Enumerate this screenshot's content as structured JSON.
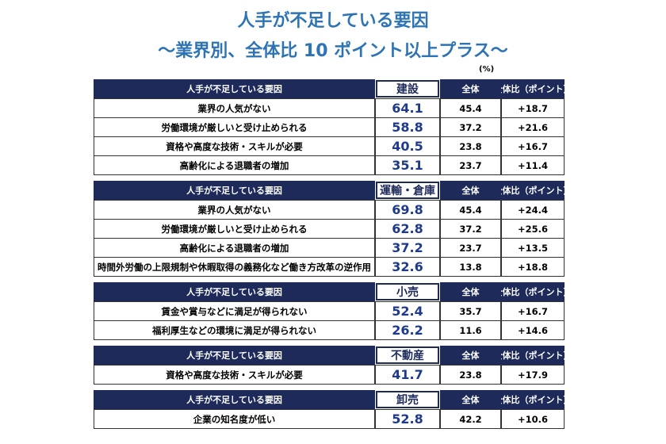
{
  "title": [
    "人手が不足している要因",
    "～業界別、全体比 10 ポイント以上プラス～"
  ],
  "unit": "(%)",
  "sections": [
    {
      "header": [
        "人手が不足している要因",
        "建設",
        "全体",
        "全体比（ポイント）"
      ],
      "rows": [
        [
          "業界の人気がない",
          "64.1",
          "45.4",
          "+18.7"
        ],
        [
          "労働環境が厳しいと受け止められる",
          "58.8",
          "37.2",
          "+21.6"
        ],
        [
          "資格や高度な技術・スキルが必要",
          "40.5",
          "23.8",
          "+16.7"
        ],
        [
          "高齢化による退職者の増加",
          "35.1",
          "23.7",
          "+11.4"
        ]
      ]
    },
    {
      "header": [
        "人手が不足している要因",
        "運輸・倉庫",
        "全体",
        "全体比（ポイント）"
      ],
      "rows": [
        [
          "業界の人気がない",
          "69.8",
          "45.4",
          "+24.4"
        ],
        [
          "労働環境が厳しいと受け止められる",
          "62.8",
          "37.2",
          "+25.6"
        ],
        [
          "高齢化による退職者の増加",
          "37.2",
          "23.7",
          "+13.5"
        ],
        [
          "時間外労働の上限規制や休暇取得の義務化など働き方改革の逆作用",
          "32.6",
          "13.8",
          "+18.8"
        ]
      ]
    },
    {
      "header": [
        "人手が不足している要因",
        "小売",
        "全体",
        "全体比（ポイント）"
      ],
      "rows": [
        [
          "賃金や賞与などに満足が得られない",
          "52.4",
          "35.7",
          "+16.7"
        ],
        [
          "福利厚生などの環境に満足が得られない",
          "26.2",
          "11.6",
          "+14.6"
        ]
      ]
    },
    {
      "header": [
        "人手が不足している要因",
        "不動産",
        "全体",
        "全体比（ポイント）"
      ],
      "rows": [
        [
          "資格や高度な技術・スキルが必要",
          "41.7",
          "23.8",
          "+17.9"
        ]
      ]
    },
    {
      "header": [
        "人手が不足している要因",
        "卸売",
        "全体",
        "全体比（ポイント）"
      ],
      "rows": [
        [
          "企業の知名度が低い",
          "52.8",
          "42.2",
          "+10.6"
        ]
      ]
    }
  ]
}
